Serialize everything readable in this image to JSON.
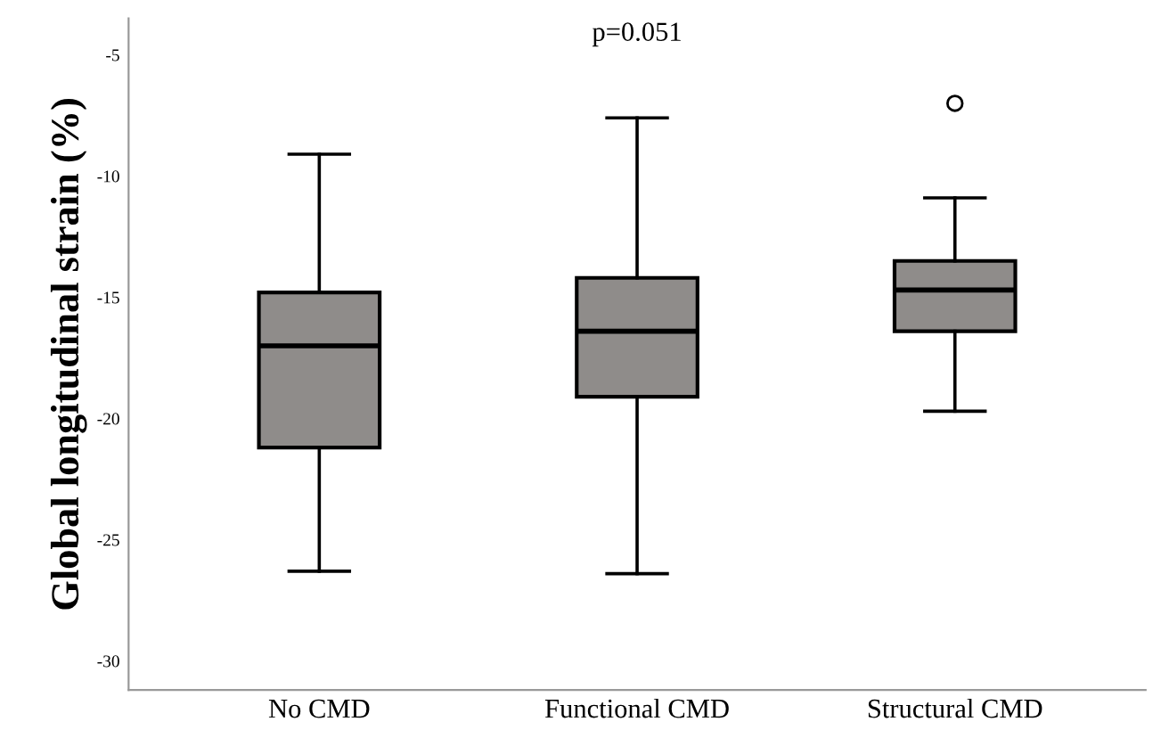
{
  "chart_data": {
    "type": "box",
    "ylabel": "Global longitudinal strain (%)",
    "annotations": [
      "p=0.051"
    ],
    "categories": [
      "No CMD",
      "Functional CMD",
      "Structural CMD"
    ],
    "boxes": [
      {
        "low": -26.3,
        "q1": -21.2,
        "median": -17.0,
        "q3": -14.8,
        "high": -9.1
      },
      {
        "low": -26.4,
        "q1": -19.1,
        "median": -16.4,
        "q3": -14.2,
        "high": -7.6
      },
      {
        "low": -19.7,
        "q1": -16.4,
        "median": -14.7,
        "q3": -13.5,
        "high": -10.9,
        "outliers": [
          -7.0
        ]
      }
    ],
    "color": "#8f8c8a",
    "ylim": [
      -31.2,
      -3.5
    ],
    "yticks": [
      -30,
      -25,
      -20,
      -15,
      -10,
      -5
    ],
    "grid": false
  }
}
